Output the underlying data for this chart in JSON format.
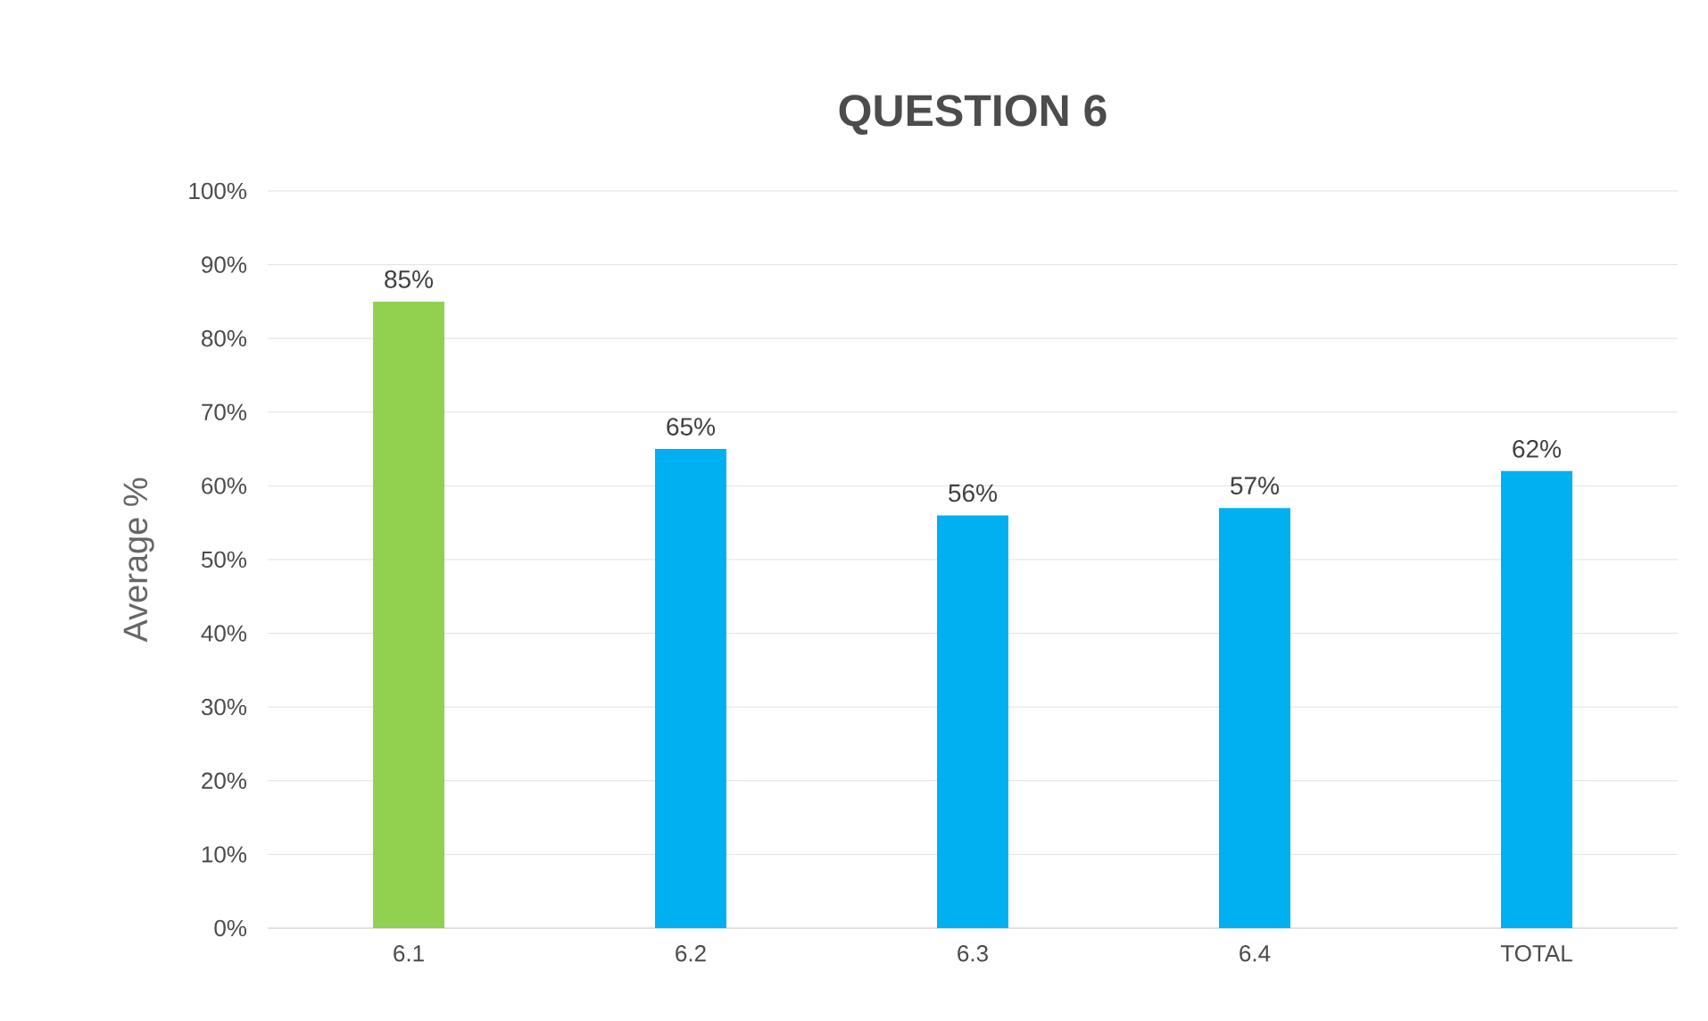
{
  "chart_data": {
    "type": "bar",
    "title": "QUESTION 6",
    "ylabel": "Average %",
    "categories": [
      "6.1",
      "6.2",
      "6.3",
      "6.4",
      "TOTAL"
    ],
    "values": [
      85,
      65,
      56,
      57,
      62
    ],
    "colors": [
      "#92d050",
      "#00b0f0",
      "#00b0f0",
      "#00b0f0",
      "#00b0f0"
    ],
    "value_labels": [
      "85%",
      "65%",
      "56%",
      "57%",
      "62%"
    ],
    "ylim": [
      0,
      100
    ],
    "yticks": [
      {
        "value": 0,
        "label": "0%"
      },
      {
        "value": 10,
        "label": "10%"
      },
      {
        "value": 20,
        "label": "20%"
      },
      {
        "value": 30,
        "label": "30%"
      },
      {
        "value": 40,
        "label": "40%"
      },
      {
        "value": 50,
        "label": "50%"
      },
      {
        "value": 60,
        "label": "60%"
      },
      {
        "value": 70,
        "label": "70%"
      },
      {
        "value": 80,
        "label": "80%"
      },
      {
        "value": 90,
        "label": "90%"
      },
      {
        "value": 100,
        "label": "100%"
      }
    ],
    "grid": "y"
  }
}
